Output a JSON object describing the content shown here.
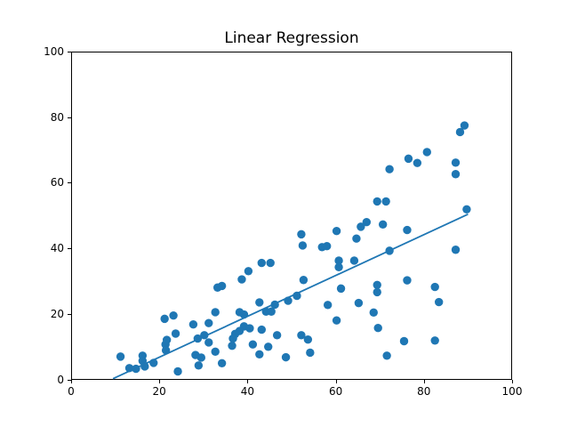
{
  "figure": {
    "title": "Linear Regression",
    "background_color": "#ffffff",
    "spine_color": "#000000",
    "tick_label_color": "#000000"
  },
  "chart_data": {
    "type": "scatter",
    "title": "Linear Regression",
    "xlabel": "",
    "ylabel": "",
    "xlim": [
      0,
      100
    ],
    "ylim": [
      0,
      100
    ],
    "x_ticks": [
      "0",
      "20",
      "40",
      "60",
      "80",
      "100"
    ],
    "y_ticks": [
      "0",
      "20",
      "40",
      "60",
      "80",
      "100"
    ],
    "x_tick_values": [
      0,
      20,
      40,
      60,
      80,
      100
    ],
    "y_tick_values": [
      0,
      20,
      40,
      60,
      80,
      100
    ],
    "grid": false,
    "legend": false,
    "point_color": "#1f77b4",
    "line_color": "#1f77b4",
    "series": [
      {
        "name": "scatter-points",
        "points": [
          [
            11,
            7.5
          ],
          [
            13,
            4
          ],
          [
            14.5,
            3.8
          ],
          [
            16,
            7.8
          ],
          [
            16,
            6.2
          ],
          [
            16.5,
            4.5
          ],
          [
            18.5,
            5.6
          ],
          [
            21,
            19
          ],
          [
            23,
            20
          ],
          [
            23.5,
            14.5
          ],
          [
            21.5,
            12.6
          ],
          [
            21.2,
            11.2
          ],
          [
            21.3,
            9.4
          ],
          [
            24,
            3
          ],
          [
            27.5,
            17.3
          ],
          [
            31,
            17.7
          ],
          [
            32.5,
            21
          ],
          [
            30,
            14
          ],
          [
            28.5,
            13
          ],
          [
            31,
            11.8
          ],
          [
            32.5,
            9
          ],
          [
            28,
            8
          ],
          [
            29.3,
            7.2
          ],
          [
            28.7,
            4.8
          ],
          [
            34,
            5.5
          ],
          [
            33,
            28.5
          ],
          [
            34,
            29
          ],
          [
            38,
            21
          ],
          [
            39,
            20.3
          ],
          [
            39,
            16.7
          ],
          [
            40.3,
            16.1
          ],
          [
            38,
            15.3
          ],
          [
            37,
            14.4
          ],
          [
            36.5,
            13
          ],
          [
            36.3,
            10.8
          ],
          [
            38.5,
            31
          ],
          [
            40,
            33.5
          ],
          [
            41,
            11.2
          ],
          [
            43,
            15.7
          ],
          [
            44.5,
            10.5
          ],
          [
            42.5,
            8.2
          ],
          [
            46.5,
            14
          ],
          [
            48.5,
            7.3
          ],
          [
            42.5,
            24
          ],
          [
            44,
            21.2
          ],
          [
            45.2,
            21.2
          ],
          [
            46,
            23.3
          ],
          [
            43,
            36
          ],
          [
            45,
            36
          ],
          [
            49,
            24.5
          ],
          [
            51,
            26
          ],
          [
            52,
            14
          ],
          [
            53.5,
            12.7
          ],
          [
            54,
            8.7
          ],
          [
            52,
            44.7
          ],
          [
            52.3,
            41.3
          ],
          [
            56.7,
            40.8
          ],
          [
            57.8,
            41.1
          ],
          [
            52.5,
            30.8
          ],
          [
            58,
            23.2
          ],
          [
            60,
            45.7
          ],
          [
            60.5,
            36.7
          ],
          [
            60.5,
            34.7
          ],
          [
            64,
            36.7
          ],
          [
            61,
            28.2
          ],
          [
            60,
            18.5
          ],
          [
            65,
            23.8
          ],
          [
            64.5,
            43.4
          ],
          [
            65.5,
            47
          ],
          [
            66.8,
            48.4
          ],
          [
            70.5,
            47.7
          ],
          [
            76,
            46
          ],
          [
            72,
            39.7
          ],
          [
            69.2,
            54.7
          ],
          [
            71.2,
            54.7
          ],
          [
            72,
            64.5
          ],
          [
            69.2,
            29.3
          ],
          [
            69.2,
            27.1
          ],
          [
            68.4,
            20.9
          ],
          [
            69.4,
            16.2
          ],
          [
            71.4,
            7.8
          ],
          [
            75.3,
            12.2
          ],
          [
            76,
            30.7
          ],
          [
            76.3,
            67.7
          ],
          [
            78.3,
            66.4
          ],
          [
            80.5,
            69.7
          ],
          [
            87,
            66.5
          ],
          [
            87,
            63
          ],
          [
            88,
            75.8
          ],
          [
            89,
            77.8
          ],
          [
            87,
            40
          ],
          [
            82.3,
            28.7
          ],
          [
            83.2,
            24.1
          ],
          [
            82.3,
            12.4
          ],
          [
            89.5,
            52.3
          ]
        ]
      }
    ],
    "regression_line": {
      "x1": 9.3,
      "y1": 0.8,
      "x2": 89.8,
      "y2": 50.8
    }
  }
}
